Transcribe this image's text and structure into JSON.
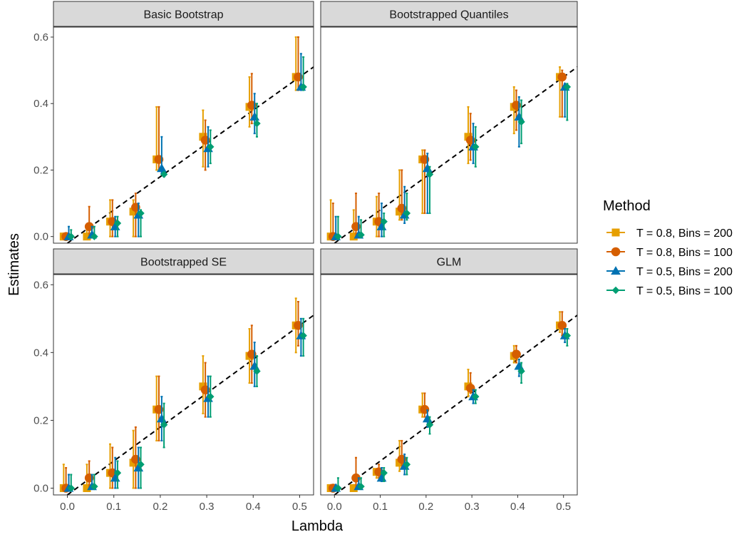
{
  "chart_data": {
    "type": "scatter",
    "xlabel": "Lambda",
    "ylabel": "Estimates",
    "xlim": [
      -0.03,
      0.53
    ],
    "ylim": [
      -0.02,
      0.63
    ],
    "xticks": [
      0.0,
      0.1,
      0.2,
      0.3,
      0.4,
      0.5
    ],
    "xtick_labels": [
      "0.0",
      "0.1",
      "0.2",
      "0.3",
      "0.4",
      "0.5"
    ],
    "yticks": [
      0.0,
      0.2,
      0.4,
      0.6
    ],
    "ytick_labels": [
      "0.0",
      "0.2",
      "0.4",
      "0.6"
    ],
    "reference_line": {
      "slope": 1,
      "intercept": -0.02,
      "style": "dashed"
    },
    "grid": false,
    "legend": {
      "title": "Method",
      "position": "right",
      "entries": [
        {
          "label": "T = 0.8, Bins = 200",
          "color": "#E69F00",
          "shape": "square"
        },
        {
          "label": "T = 0.8, Bins = 100",
          "color": "#D55E00",
          "shape": "circle"
        },
        {
          "label": "T = 0.5, Bins = 200",
          "color": "#0072B2",
          "shape": "triangle"
        },
        {
          "label": "T = 0.5, Bins = 100",
          "color": "#009E73",
          "shape": "diamond"
        }
      ]
    },
    "x": [
      0.0,
      0.05,
      0.1,
      0.15,
      0.2,
      0.3,
      0.4,
      0.5
    ],
    "panels": [
      {
        "title": "Basic Bootstrap",
        "series": [
          {
            "name": "T = 0.8, Bins = 200",
            "y": [
              0.0,
              0.0,
              0.045,
              0.075,
              0.232,
              0.3,
              0.39,
              0.48
            ],
            "lower": [
              0.0,
              0.0,
              0.0,
              0.0,
              0.2,
              0.21,
              0.33,
              0.44
            ],
            "upper": [
              0.01,
              0.02,
              0.11,
              0.11,
              0.39,
              0.38,
              0.48,
              0.6
            ]
          },
          {
            "name": "T = 0.8, Bins = 100",
            "y": [
              0.0,
              0.03,
              0.045,
              0.088,
              0.232,
              0.29,
              0.395,
              0.48
            ],
            "lower": [
              0.0,
              0.0,
              0.0,
              0.0,
              0.2,
              0.2,
              0.34,
              0.44
            ],
            "upper": [
              0.01,
              0.09,
              0.11,
              0.13,
              0.39,
              0.35,
              0.49,
              0.6
            ]
          },
          {
            "name": "T = 0.5, Bins = 200",
            "y": [
              0.0,
              0.005,
              0.03,
              0.065,
              0.205,
              0.265,
              0.36,
              0.45
            ],
            "lower": [
              0.0,
              0.0,
              0.0,
              0.0,
              0.19,
              0.21,
              0.31,
              0.44
            ],
            "upper": [
              0.03,
              0.03,
              0.06,
              0.1,
              0.3,
              0.33,
              0.43,
              0.55
            ]
          },
          {
            "name": "T = 0.5, Bins = 100",
            "y": [
              0.0,
              0.0,
              0.04,
              0.07,
              0.187,
              0.27,
              0.34,
              0.45
            ],
            "lower": [
              0.0,
              0.0,
              0.0,
              0.0,
              0.18,
              0.22,
              0.3,
              0.44
            ],
            "upper": [
              0.02,
              0.03,
              0.06,
              0.08,
              0.19,
              0.32,
              0.4,
              0.54
            ]
          }
        ]
      },
      {
        "title": "Bootstrapped Quantiles",
        "series": [
          {
            "name": "T = 0.8, Bins = 200",
            "y": [
              0.0,
              0.0,
              0.045,
              0.075,
              0.232,
              0.3,
              0.39,
              0.48
            ],
            "lower": [
              0.0,
              0.0,
              0.0,
              0.05,
              0.07,
              0.22,
              0.31,
              0.36
            ],
            "upper": [
              0.11,
              0.08,
              0.12,
              0.2,
              0.26,
              0.39,
              0.45,
              0.51
            ]
          },
          {
            "name": "T = 0.8, Bins = 100",
            "y": [
              0.0,
              0.03,
              0.045,
              0.085,
              0.232,
              0.29,
              0.395,
              0.48
            ],
            "lower": [
              0.0,
              0.0,
              0.0,
              0.05,
              0.07,
              0.23,
              0.32,
              0.36
            ],
            "upper": [
              0.1,
              0.13,
              0.13,
              0.2,
              0.26,
              0.37,
              0.44,
              0.5
            ]
          },
          {
            "name": "T = 0.5, Bins = 200",
            "y": [
              0.0,
              0.005,
              0.03,
              0.065,
              0.205,
              0.27,
              0.36,
              0.45
            ],
            "lower": [
              0.0,
              0.0,
              0.0,
              0.04,
              0.07,
              0.22,
              0.27,
              0.36
            ],
            "upper": [
              0.06,
              0.06,
              0.1,
              0.15,
              0.25,
              0.34,
              0.42,
              0.46
            ]
          },
          {
            "name": "T = 0.5, Bins = 100",
            "y": [
              0.0,
              0.005,
              0.045,
              0.07,
              0.187,
              0.27,
              0.345,
              0.45
            ],
            "lower": [
              0.0,
              0.0,
              0.0,
              0.05,
              0.07,
              0.21,
              0.28,
              0.35
            ],
            "upper": [
              0.06,
              0.05,
              0.07,
              0.13,
              0.21,
              0.33,
              0.41,
              0.46
            ]
          }
        ]
      },
      {
        "title": "Bootstrapped SE",
        "series": [
          {
            "name": "T = 0.8, Bins = 200",
            "y": [
              0.0,
              0.0,
              0.045,
              0.075,
              0.232,
              0.3,
              0.39,
              0.48
            ],
            "lower": [
              0.0,
              0.0,
              0.0,
              0.0,
              0.14,
              0.22,
              0.31,
              0.4
            ],
            "upper": [
              0.07,
              0.07,
              0.13,
              0.17,
              0.33,
              0.39,
              0.47,
              0.56
            ]
          },
          {
            "name": "T = 0.8, Bins = 100",
            "y": [
              0.0,
              0.03,
              0.045,
              0.085,
              0.232,
              0.29,
              0.395,
              0.48
            ],
            "lower": [
              0.0,
              0.0,
              0.0,
              0.0,
              0.14,
              0.21,
              0.31,
              0.42
            ],
            "upper": [
              0.06,
              0.08,
              0.12,
              0.18,
              0.33,
              0.37,
              0.48,
              0.55
            ]
          },
          {
            "name": "T = 0.5, Bins = 200",
            "y": [
              0.0,
              0.005,
              0.03,
              0.06,
              0.205,
              0.265,
              0.36,
              0.45
            ],
            "lower": [
              0.0,
              0.0,
              0.0,
              0.0,
              0.14,
              0.21,
              0.3,
              0.39
            ],
            "upper": [
              0.04,
              0.04,
              0.09,
              0.12,
              0.27,
              0.33,
              0.43,
              0.5
            ]
          },
          {
            "name": "T = 0.5, Bins = 100",
            "y": [
              0.0,
              0.005,
              0.045,
              0.07,
              0.187,
              0.27,
              0.345,
              0.45
            ],
            "lower": [
              0.0,
              0.0,
              0.0,
              0.0,
              0.12,
              0.21,
              0.3,
              0.39
            ],
            "upper": [
              0.04,
              0.04,
              0.08,
              0.12,
              0.25,
              0.33,
              0.39,
              0.5
            ]
          }
        ]
      },
      {
        "title": "GLM",
        "series": [
          {
            "name": "T = 0.8, Bins = 200",
            "y": [
              0.0,
              0.0,
              0.048,
              0.075,
              0.232,
              0.3,
              0.39,
              0.48
            ],
            "lower": [
              0.0,
              0.0,
              0.03,
              0.05,
              0.21,
              0.27,
              0.37,
              0.46
            ],
            "upper": [
              0.01,
              0.01,
              0.05,
              0.14,
              0.28,
              0.35,
              0.42,
              0.52
            ]
          },
          {
            "name": "T = 0.8, Bins = 100",
            "y": [
              0.0,
              0.03,
              0.048,
              0.085,
              0.232,
              0.295,
              0.395,
              0.48
            ],
            "lower": [
              0.0,
              0.0,
              0.03,
              0.06,
              0.21,
              0.28,
              0.37,
              0.45
            ],
            "upper": [
              0.01,
              0.09,
              0.07,
              0.14,
              0.28,
              0.34,
              0.42,
              0.52
            ]
          },
          {
            "name": "T = 0.5, Bins = 200",
            "y": [
              0.0,
              0.005,
              0.03,
              0.065,
              0.205,
              0.27,
              0.36,
              0.45
            ],
            "lower": [
              0.0,
              0.0,
              0.02,
              0.04,
              0.18,
              0.25,
              0.33,
              0.43
            ],
            "upper": [
              0.01,
              0.03,
              0.06,
              0.1,
              0.23,
              0.29,
              0.38,
              0.47
            ]
          },
          {
            "name": "T = 0.5, Bins = 100",
            "y": [
              0.0,
              0.005,
              0.045,
              0.07,
              0.187,
              0.27,
              0.345,
              0.45
            ],
            "lower": [
              0.0,
              0.0,
              0.02,
              0.04,
              0.16,
              0.25,
              0.31,
              0.42
            ],
            "upper": [
              0.03,
              0.03,
              0.06,
              0.09,
              0.21,
              0.29,
              0.37,
              0.47
            ]
          }
        ]
      }
    ]
  }
}
